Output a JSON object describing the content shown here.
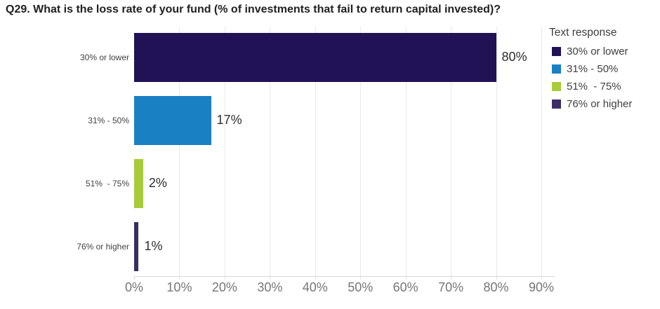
{
  "title": "Q29. What is the loss rate of your fund (% of investments that fail to return capital invested)?",
  "legend": {
    "title": "Text response",
    "items": [
      {
        "label": "30% or lower",
        "color": "#211256"
      },
      {
        "label": "31% - 50%",
        "color": "#1a80c4"
      },
      {
        "label": "51%  - 75%",
        "color": "#a8cb3a"
      },
      {
        "label": "76% or higher",
        "color": "#3b2e63"
      }
    ]
  },
  "chart_data": {
    "type": "bar",
    "orientation": "horizontal",
    "title": "Q29. What is the loss rate of your fund (% of investments that fail to return capital invested)?",
    "categories": [
      "30% or lower",
      "31% - 50%",
      "51%  - 75%",
      "76% or higher"
    ],
    "values": [
      80,
      17,
      2,
      1
    ],
    "value_labels": [
      "80%",
      "17%",
      "2%",
      "1%"
    ],
    "colors": [
      "#211256",
      "#1a80c4",
      "#a8cb3a",
      "#3b2e63"
    ],
    "xlim": [
      0,
      90
    ],
    "x_ticks": [
      {
        "value": 0,
        "label": "0%"
      },
      {
        "value": 10,
        "label": "10%"
      },
      {
        "value": 20,
        "label": "20%"
      },
      {
        "value": 30,
        "label": "30%"
      },
      {
        "value": 40,
        "label": "40%"
      },
      {
        "value": 50,
        "label": "50%"
      },
      {
        "value": 60,
        "label": "60%"
      },
      {
        "value": 70,
        "label": "70%"
      },
      {
        "value": 80,
        "label": "80%"
      },
      {
        "value": 90,
        "label": "90%"
      }
    ],
    "grid": "vertical-gridlines",
    "legend_position": "right",
    "gridline_color": "#e9e9e9",
    "axis_line_color": "#d9d9d9"
  }
}
